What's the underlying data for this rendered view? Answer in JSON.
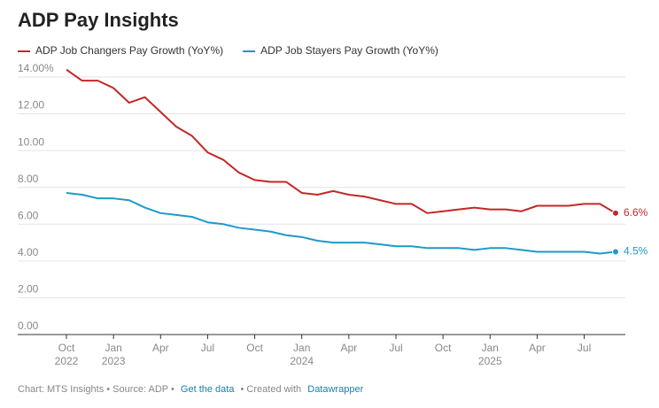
{
  "chart_data": {
    "type": "line",
    "title": "ADP Pay Insights",
    "x": [
      "2022-10",
      "2022-11",
      "2022-12",
      "2023-01",
      "2023-02",
      "2023-03",
      "2023-04",
      "2023-05",
      "2023-06",
      "2023-07",
      "2023-08",
      "2023-09",
      "2023-10",
      "2023-11",
      "2023-12",
      "2024-01",
      "2024-02",
      "2024-03",
      "2024-04",
      "2024-05",
      "2024-06",
      "2024-07",
      "2024-08",
      "2024-09",
      "2024-10",
      "2024-11",
      "2024-12",
      "2025-01",
      "2025-02",
      "2025-03",
      "2025-04",
      "2025-05",
      "2025-06",
      "2025-07",
      "2025-08",
      "2025-09"
    ],
    "xticks": [
      {
        "value": "2022-10",
        "label": "Oct",
        "year": "2022"
      },
      {
        "value": "2023-01",
        "label": "Jan",
        "year": "2023"
      },
      {
        "value": "2023-04",
        "label": "Apr"
      },
      {
        "value": "2023-07",
        "label": "Jul"
      },
      {
        "value": "2023-10",
        "label": "Oct"
      },
      {
        "value": "2024-01",
        "label": "Jan",
        "year": "2024"
      },
      {
        "value": "2024-04",
        "label": "Apr"
      },
      {
        "value": "2024-07",
        "label": "Jul"
      },
      {
        "value": "2024-10",
        "label": "Oct"
      },
      {
        "value": "2025-01",
        "label": "Jan",
        "year": "2025"
      },
      {
        "value": "2025-04",
        "label": "Apr"
      },
      {
        "value": "2025-07",
        "label": "Jul"
      }
    ],
    "series": [
      {
        "name": "ADP Job Changers Pay Growth (YoY%)",
        "color": "#c42727",
        "values": [
          14.4,
          13.8,
          13.8,
          13.4,
          12.6,
          12.9,
          12.1,
          11.3,
          10.8,
          9.9,
          9.5,
          8.8,
          8.4,
          8.3,
          8.3,
          7.7,
          7.6,
          7.8,
          7.6,
          7.5,
          7.3,
          7.1,
          7.1,
          6.6,
          6.7,
          6.8,
          6.9,
          6.8,
          6.8,
          6.7,
          7.0,
          7.0,
          7.0,
          7.1,
          7.1,
          6.6
        ],
        "value_labels": [
          null,
          null,
          null,
          null,
          null,
          null,
          null,
          null,
          null,
          null,
          null,
          null,
          null,
          null,
          null,
          null,
          null,
          null,
          null,
          null,
          null,
          null,
          null,
          null,
          null,
          null,
          null,
          null,
          null,
          null,
          null,
          null,
          null,
          null,
          null,
          "6.6%"
        ]
      },
      {
        "name": "ADP Job Stayers Pay Growth (YoY%)",
        "color": "#1d9ac7",
        "values": [
          7.7,
          7.6,
          7.4,
          7.4,
          7.3,
          6.9,
          6.6,
          6.5,
          6.4,
          6.1,
          6.0,
          5.8,
          5.7,
          5.6,
          5.4,
          5.3,
          5.1,
          5.0,
          5.0,
          5.0,
          4.9,
          4.8,
          4.8,
          4.7,
          4.7,
          4.7,
          4.6,
          4.7,
          4.7,
          4.6,
          4.5,
          4.5,
          4.5,
          4.5,
          4.4,
          4.5
        ],
        "value_labels": [
          null,
          null,
          null,
          null,
          null,
          null,
          null,
          null,
          null,
          null,
          null,
          null,
          null,
          null,
          null,
          null,
          null,
          null,
          null,
          null,
          null,
          null,
          null,
          null,
          null,
          null,
          null,
          null,
          null,
          null,
          null,
          null,
          null,
          null,
          null,
          "4.5%"
        ]
      }
    ],
    "ylim": [
      0,
      14
    ],
    "yticks": [
      {
        "value": 0,
        "label": "0.00"
      },
      {
        "value": 2,
        "label": "2.00"
      },
      {
        "value": 4,
        "label": "4.00"
      },
      {
        "value": 6,
        "label": "6.00"
      },
      {
        "value": 8,
        "label": "8.00"
      },
      {
        "value": 10,
        "label": "10.00"
      },
      {
        "value": 12,
        "label": "12.00"
      },
      {
        "value": 14,
        "label": "14.00%"
      }
    ],
    "grid": true,
    "footer": {
      "prefix": "Chart: MTS Insights • Source: ADP •",
      "link1": "Get the data",
      "middle": "• Created with",
      "link2": "Datawrapper"
    }
  }
}
